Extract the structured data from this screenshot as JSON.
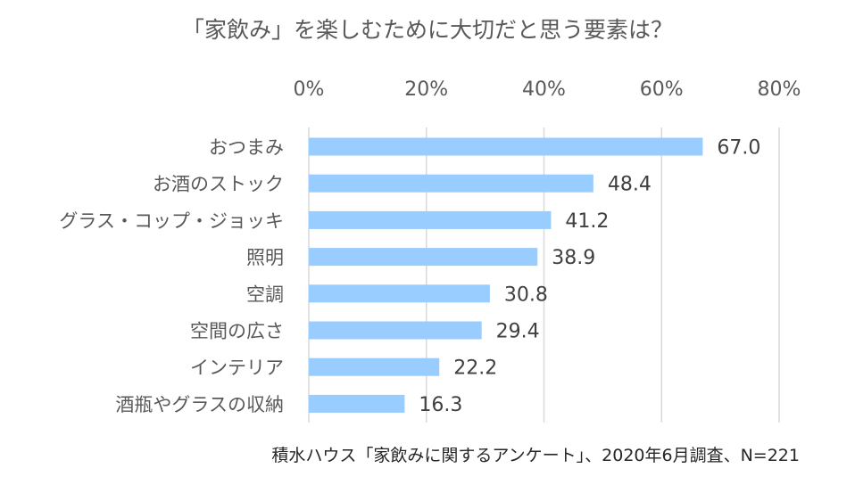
{
  "chart_data": {
    "type": "bar",
    "orientation": "horizontal",
    "title": "「家飲み」を楽しむために大切だと思う要素は？",
    "categories": [
      "おつまみ",
      "お酒のストック",
      "グラス・コップ・ジョッキ",
      "照明",
      "空調",
      "空間の広さ",
      "インテリア",
      "酒瓶やグラスの収納"
    ],
    "values": [
      67.0,
      48.4,
      41.2,
      38.9,
      30.8,
      29.4,
      22.2,
      16.3
    ],
    "value_labels": [
      "67.0",
      "48.4",
      "41.2",
      "38.9",
      "30.8",
      "29.4",
      "22.2",
      "16.3"
    ],
    "xlim": [
      0,
      80
    ],
    "xticks": [
      0,
      20,
      40,
      60,
      80
    ],
    "xtick_labels": [
      "0%",
      "20%",
      "40%",
      "60%",
      "80%"
    ],
    "axis_position": "top",
    "grid": true,
    "bar_color": "#99ccff",
    "grid_color": "#d9d9d9",
    "source_note": "積水ハウス「家飲みに関するアンケート」、2020年6月調査、N=221"
  }
}
